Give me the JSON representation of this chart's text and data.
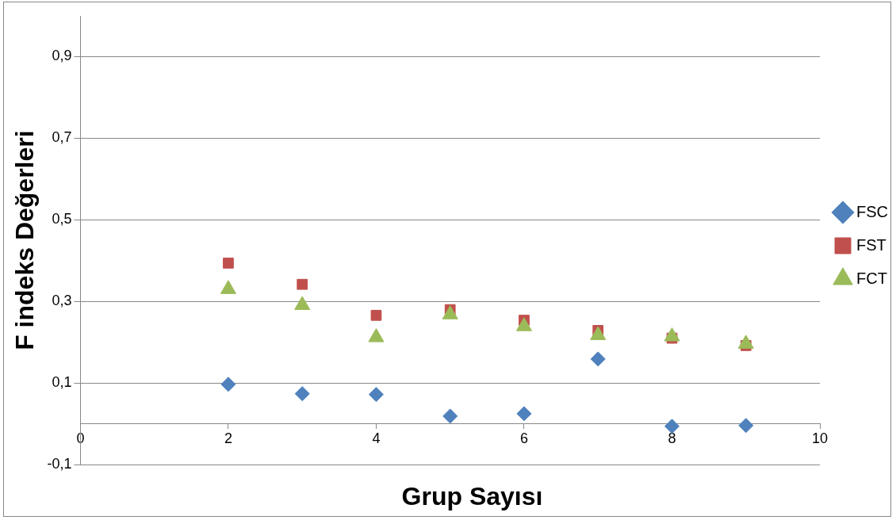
{
  "chart_data": {
    "type": "scatter",
    "xlabel": "Grup Sayısı",
    "ylabel": "F indeks Değerleri",
    "x": [
      2,
      3,
      4,
      5,
      6,
      7,
      8,
      9
    ],
    "series": [
      {
        "name": "FSC",
        "color": "#4f81bd",
        "marker": "diamond",
        "values": [
          0.097,
          0.074,
          0.072,
          0.019,
          0.025,
          0.159,
          -0.006,
          -0.004
        ]
      },
      {
        "name": "FST",
        "color": "#c0504d",
        "marker": "square",
        "values": [
          0.394,
          0.342,
          0.266,
          0.28,
          0.254,
          0.229,
          0.21,
          0.192
        ]
      },
      {
        "name": "FCT",
        "color": "#9bbb59",
        "marker": "triangle",
        "values": [
          0.33,
          0.291,
          0.212,
          0.268,
          0.239,
          0.217,
          0.214,
          0.196
        ]
      }
    ],
    "xlim": [
      0,
      10
    ],
    "xticks": [
      0,
      2,
      4,
      6,
      8,
      10
    ],
    "ylim": [
      -0.1,
      1.0
    ],
    "yticks": [
      {
        "value": -0.1,
        "label": "-0,1"
      },
      {
        "value": 0.1,
        "label": "0,1"
      },
      {
        "value": 0.3,
        "label": "0,3"
      },
      {
        "value": 0.5,
        "label": "0,5"
      },
      {
        "value": 0.7,
        "label": "0,7"
      },
      {
        "value": 0.9,
        "label": "0,9"
      }
    ],
    "grid": "y",
    "legend": "right"
  }
}
